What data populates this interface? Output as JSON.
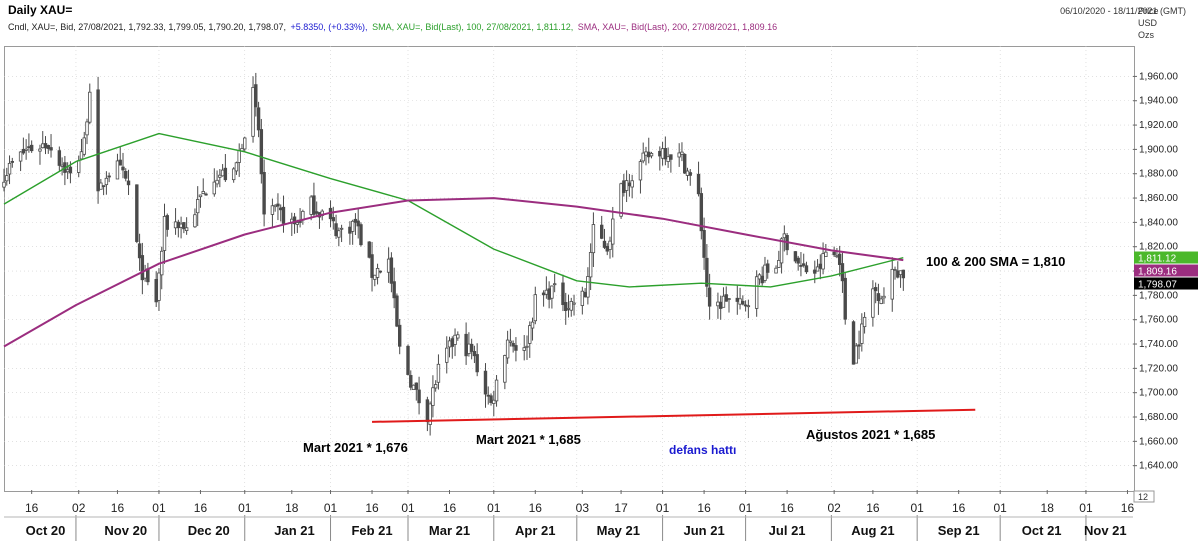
{
  "header": {
    "title": "Daily XAU=",
    "date_range": "06/10/2020 - 18/11/2021 (GMT)"
  },
  "legend": {
    "ohlc": "Cndl, XAU=, Bid, 27/08/2021, 1,792.33, 1,799.05, 1,790.20, 1,798.07,",
    "change": "+5.8350, (+0.33%),",
    "sma100": "SMA, XAU=, Bid(Last), 100, 27/08/2021, 1,811.12,",
    "sma200": "SMA, XAU=, Bid(Last), 200, 27/08/2021, 1,809.16"
  },
  "units": [
    "Price",
    "USD",
    "Ozs"
  ],
  "colors": {
    "candle": "#4a4a4a",
    "sma100": "#2ca02c",
    "sma200": "#9b2d7f",
    "support": "#e01a1a",
    "annotation_blue": "#1a1ad0",
    "badge_sma100": "#4bb82b",
    "badge_sma200": "#9b2d7f",
    "badge_price": "#000000"
  },
  "chart_data": {
    "type": "line",
    "subtype": "candlestick-with-sma",
    "ylim": [
      1620,
      1985
    ],
    "y_ticks": [
      1640,
      1660,
      1680,
      1700,
      1720,
      1740,
      1760,
      1780,
      1800,
      1820,
      1840,
      1860,
      1880,
      1900,
      1920,
      1940,
      1960
    ],
    "y_tick_labels": [
      "1,640.00",
      "1,660.00",
      "1,680.00",
      "1,700.00",
      "1,720.00",
      "1,740.00",
      "1,760.00",
      "1,780.00",
      "1,800.00",
      "1,820.00",
      "1,840.00",
      "1,860.00",
      "1,880.00",
      "1,900.00",
      "1,920.00",
      "1,940.00",
      "1,960.00"
    ],
    "x_range": [
      "2020-10-06",
      "2021-11-18"
    ],
    "x_day_ticks": [
      {
        "date": "2020-10-16",
        "label": "16"
      },
      {
        "date": "2020-11-02",
        "label": "02"
      },
      {
        "date": "2020-11-16",
        "label": "16"
      },
      {
        "date": "2020-12-01",
        "label": "01"
      },
      {
        "date": "2020-12-16",
        "label": "16"
      },
      {
        "date": "2021-01-01",
        "label": "01"
      },
      {
        "date": "2021-01-18",
        "label": "18"
      },
      {
        "date": "2021-02-01",
        "label": "01"
      },
      {
        "date": "2021-02-16",
        "label": "16"
      },
      {
        "date": "2021-03-01",
        "label": "01"
      },
      {
        "date": "2021-03-16",
        "label": "16"
      },
      {
        "date": "2021-04-01",
        "label": "01"
      },
      {
        "date": "2021-04-16",
        "label": "16"
      },
      {
        "date": "2021-05-03",
        "label": "03"
      },
      {
        "date": "2021-05-17",
        "label": "17"
      },
      {
        "date": "2021-06-01",
        "label": "01"
      },
      {
        "date": "2021-06-16",
        "label": "16"
      },
      {
        "date": "2021-07-01",
        "label": "01"
      },
      {
        "date": "2021-07-16",
        "label": "16"
      },
      {
        "date": "2021-08-02",
        "label": "02"
      },
      {
        "date": "2021-08-16",
        "label": "16"
      },
      {
        "date": "2021-09-01",
        "label": "01"
      },
      {
        "date": "2021-09-16",
        "label": "16"
      },
      {
        "date": "2021-10-01",
        "label": "01"
      },
      {
        "date": "2021-10-18",
        "label": "18"
      },
      {
        "date": "2021-11-01",
        "label": "01"
      },
      {
        "date": "2021-11-16",
        "label": "16"
      }
    ],
    "x_month_ticks": [
      {
        "date": "2020-10-21",
        "label": "Oct 20"
      },
      {
        "date": "2020-11-19",
        "label": "Nov 20"
      },
      {
        "date": "2020-12-19",
        "label": "Dec 20"
      },
      {
        "date": "2021-01-19",
        "label": "Jan 21"
      },
      {
        "date": "2021-02-16",
        "label": "Feb 21"
      },
      {
        "date": "2021-03-16",
        "label": "Mar 21"
      },
      {
        "date": "2021-04-16",
        "label": "Apr 21"
      },
      {
        "date": "2021-05-16",
        "label": "May 21"
      },
      {
        "date": "2021-06-16",
        "label": "Jun 21"
      },
      {
        "date": "2021-07-16",
        "label": "Jul 21"
      },
      {
        "date": "2021-08-16",
        "label": "Aug 21"
      },
      {
        "date": "2021-09-16",
        "label": "Sep 21"
      },
      {
        "date": "2021-10-16",
        "label": "Oct 21"
      },
      {
        "date": "2021-11-08",
        "label": "Nov 21"
      }
    ],
    "month_separators": [
      "2020-11-01",
      "2020-12-01",
      "2021-01-01",
      "2021-02-01",
      "2021-03-01",
      "2021-04-01",
      "2021-05-01",
      "2021-06-01",
      "2021-07-01",
      "2021-08-01",
      "2021-09-01",
      "2021-10-01",
      "2021-11-01"
    ],
    "close_path": [
      {
        "x": "2020-10-06",
        "y": 1880
      },
      {
        "x": "2020-10-14",
        "y": 1900
      },
      {
        "x": "2020-10-22",
        "y": 1905
      },
      {
        "x": "2020-10-30",
        "y": 1878
      },
      {
        "x": "2020-11-04",
        "y": 1905
      },
      {
        "x": "2020-11-06",
        "y": 1952
      },
      {
        "x": "2020-11-09",
        "y": 1860
      },
      {
        "x": "2020-11-12",
        "y": 1880
      },
      {
        "x": "2020-11-16",
        "y": 1885
      },
      {
        "x": "2020-11-20",
        "y": 1870
      },
      {
        "x": "2020-11-24",
        "y": 1805
      },
      {
        "x": "2020-11-27",
        "y": 1788
      },
      {
        "x": "2020-11-30",
        "y": 1776
      },
      {
        "x": "2020-12-03",
        "y": 1838
      },
      {
        "x": "2020-12-08",
        "y": 1840
      },
      {
        "x": "2020-12-11",
        "y": 1835
      },
      {
        "x": "2020-12-16",
        "y": 1860
      },
      {
        "x": "2020-12-21",
        "y": 1880
      },
      {
        "x": "2020-12-28",
        "y": 1878
      },
      {
        "x": "2021-01-04",
        "y": 1945
      },
      {
        "x": "2021-01-06",
        "y": 1915
      },
      {
        "x": "2021-01-08",
        "y": 1845
      },
      {
        "x": "2021-01-13",
        "y": 1848
      },
      {
        "x": "2021-01-19",
        "y": 1838
      },
      {
        "x": "2021-01-25",
        "y": 1855
      },
      {
        "x": "2021-01-29",
        "y": 1848
      },
      {
        "x": "2021-02-04",
        "y": 1832
      },
      {
        "x": "2021-02-10",
        "y": 1840
      },
      {
        "x": "2021-02-16",
        "y": 1798
      },
      {
        "x": "2021-02-22",
        "y": 1808
      },
      {
        "x": "2021-02-26",
        "y": 1735
      },
      {
        "x": "2021-03-04",
        "y": 1698
      },
      {
        "x": "2021-03-08",
        "y": 1683
      },
      {
        "x": "2021-03-12",
        "y": 1718
      },
      {
        "x": "2021-03-18",
        "y": 1745
      },
      {
        "x": "2021-03-24",
        "y": 1733
      },
      {
        "x": "2021-03-31",
        "y": 1690
      },
      {
        "x": "2021-04-06",
        "y": 1745
      },
      {
        "x": "2021-04-12",
        "y": 1733
      },
      {
        "x": "2021-04-16",
        "y": 1775
      },
      {
        "x": "2021-04-22",
        "y": 1785
      },
      {
        "x": "2021-04-28",
        "y": 1772
      },
      {
        "x": "2021-05-04",
        "y": 1780
      },
      {
        "x": "2021-05-07",
        "y": 1832
      },
      {
        "x": "2021-05-12",
        "y": 1820
      },
      {
        "x": "2021-05-17",
        "y": 1868
      },
      {
        "x": "2021-05-21",
        "y": 1880
      },
      {
        "x": "2021-05-27",
        "y": 1895
      },
      {
        "x": "2021-06-01",
        "y": 1900
      },
      {
        "x": "2021-06-08",
        "y": 1893
      },
      {
        "x": "2021-06-14",
        "y": 1860
      },
      {
        "x": "2021-06-18",
        "y": 1765
      },
      {
        "x": "2021-06-24",
        "y": 1778
      },
      {
        "x": "2021-06-30",
        "y": 1770
      },
      {
        "x": "2021-07-06",
        "y": 1795
      },
      {
        "x": "2021-07-12",
        "y": 1805
      },
      {
        "x": "2021-07-15",
        "y": 1828
      },
      {
        "x": "2021-07-21",
        "y": 1802
      },
      {
        "x": "2021-07-27",
        "y": 1799
      },
      {
        "x": "2021-07-30",
        "y": 1815
      },
      {
        "x": "2021-08-04",
        "y": 1812
      },
      {
        "x": "2021-08-06",
        "y": 1762
      },
      {
        "x": "2021-08-09",
        "y": 1730
      },
      {
        "x": "2021-08-12",
        "y": 1752
      },
      {
        "x": "2021-08-16",
        "y": 1785
      },
      {
        "x": "2021-08-20",
        "y": 1780
      },
      {
        "x": "2021-08-24",
        "y": 1802
      },
      {
        "x": "2021-08-27",
        "y": 1798
      }
    ],
    "series": [
      {
        "name": "SMA, XAU=, Bid(Last), 100",
        "color": "#2ca02c",
        "points": [
          {
            "x": "2020-10-06",
            "y": 1855
          },
          {
            "x": "2020-11-01",
            "y": 1890
          },
          {
            "x": "2020-12-01",
            "y": 1913
          },
          {
            "x": "2021-01-01",
            "y": 1898
          },
          {
            "x": "2021-02-01",
            "y": 1876
          },
          {
            "x": "2021-03-01",
            "y": 1858
          },
          {
            "x": "2021-04-01",
            "y": 1818
          },
          {
            "x": "2021-05-01",
            "y": 1792
          },
          {
            "x": "2021-05-20",
            "y": 1787
          },
          {
            "x": "2021-06-15",
            "y": 1790
          },
          {
            "x": "2021-07-10",
            "y": 1787
          },
          {
            "x": "2021-08-01",
            "y": 1796
          },
          {
            "x": "2021-08-27",
            "y": 1811
          }
        ]
      },
      {
        "name": "SMA, XAU=, Bid(Last), 200",
        "color": "#9b2d7f",
        "points": [
          {
            "x": "2020-10-06",
            "y": 1738
          },
          {
            "x": "2020-11-01",
            "y": 1772
          },
          {
            "x": "2020-12-01",
            "y": 1806
          },
          {
            "x": "2021-01-01",
            "y": 1830
          },
          {
            "x": "2021-02-01",
            "y": 1848
          },
          {
            "x": "2021-03-01",
            "y": 1858
          },
          {
            "x": "2021-04-01",
            "y": 1860
          },
          {
            "x": "2021-05-01",
            "y": 1853
          },
          {
            "x": "2021-06-01",
            "y": 1843
          },
          {
            "x": "2021-07-01",
            "y": 1830
          },
          {
            "x": "2021-08-01",
            "y": 1817
          },
          {
            "x": "2021-08-27",
            "y": 1809
          }
        ]
      }
    ],
    "support_line": {
      "from": {
        "x": "2021-02-16",
        "y": 1676
      },
      "to": {
        "x": "2021-09-22",
        "y": 1686
      }
    },
    "badges": [
      {
        "value": "1,811.12",
        "y": 1811.12,
        "color": "#4bb82b"
      },
      {
        "value": "1,809.16",
        "y": 1809.16,
        "color": "#9b2d7f"
      },
      {
        "value": "1,798.07",
        "y": 1798.07,
        "color": "#000000"
      }
    ],
    "annotations": {
      "sma_label": "100 & 200 SMA = 1,810",
      "low1": "Mart 2021 * 1,676",
      "low2": "Mart 2021 * 1,685",
      "low3": "Ağustos 2021 * 1,685",
      "defense": "defans hattı"
    },
    "bottom_right_label": "12"
  }
}
